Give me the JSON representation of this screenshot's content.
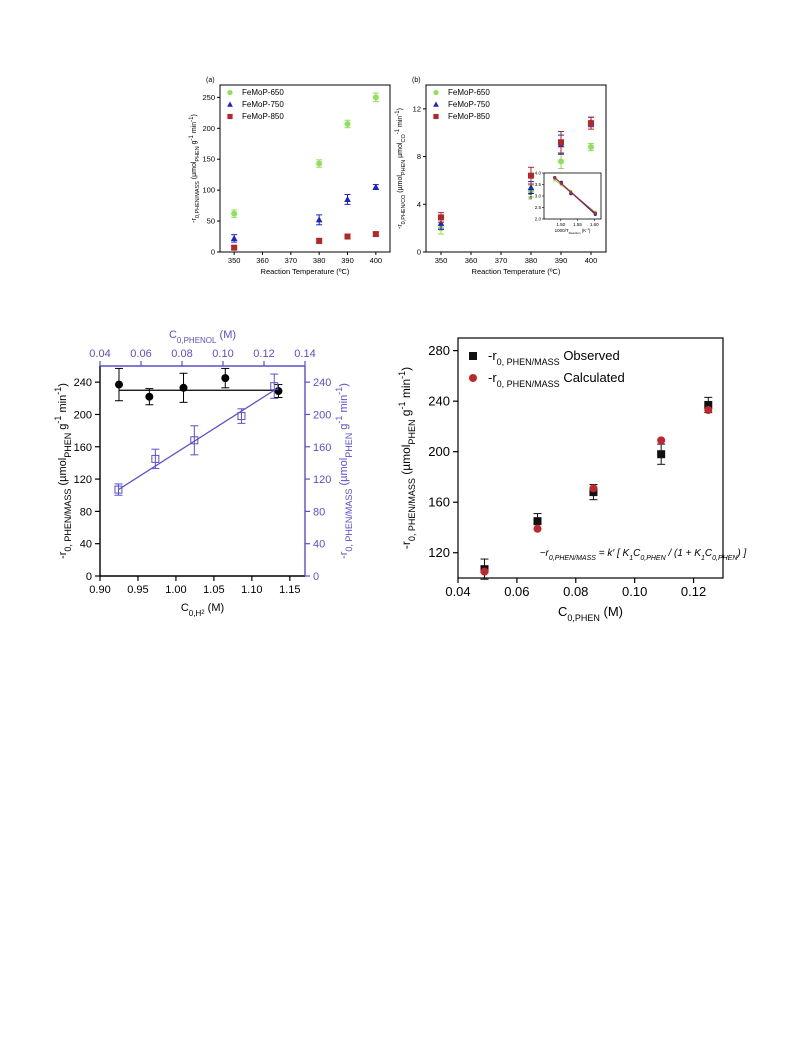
{
  "chart_data": [
    {
      "id": "a",
      "type": "scatter",
      "panel_label": "(a)",
      "title": "",
      "xlabel": "Reaction Temperature (ºC)",
      "ylabel_html": "-r<tspan baseline-shift='sub' font-size='5.5'>0,PHEN/MASS</tspan> (µmol<tspan baseline-shift='sub' font-size='5.5'>PHEN</tspan> g<tspan baseline-shift='super' font-size='6'>-1</tspan> min<tspan baseline-shift='super' font-size='6'>-1</tspan>)",
      "xlim": [
        345,
        405
      ],
      "ylim": [
        0,
        270
      ],
      "xticks": [
        350,
        360,
        370,
        380,
        390,
        400
      ],
      "yticks": [
        0,
        50,
        100,
        150,
        200,
        250
      ],
      "legend_position": "top-left",
      "grid": false,
      "series": [
        {
          "name": "FeMoP-650",
          "color": "#8fe05a",
          "marker": "circle",
          "x": [
            350,
            380,
            390,
            400
          ],
          "y": [
            62,
            143,
            207,
            250
          ],
          "err": [
            6,
            6,
            6,
            7
          ]
        },
        {
          "name": "FeMoP-750",
          "color": "#1c22c4",
          "marker": "triangle",
          "x": [
            350,
            380,
            390,
            400
          ],
          "y": [
            22,
            52,
            85,
            105
          ],
          "err": [
            6,
            8,
            8,
            4
          ]
        },
        {
          "name": "FeMoP-850",
          "color": "#b3262a",
          "marker": "square",
          "x": [
            350,
            380,
            390,
            400
          ],
          "y": [
            7,
            18,
            25,
            29
          ],
          "err": [
            3,
            4,
            4,
            3
          ]
        }
      ]
    },
    {
      "id": "b",
      "type": "scatter",
      "panel_label": "(b)",
      "title": "",
      "xlabel": "Reaction Temperature (ºC)",
      "ylabel_html": "-r<tspan baseline-shift='sub' font-size='5.5'>0,PHEN/CO</tspan> (µmol<tspan baseline-shift='sub' font-size='5.5'>PHEN</tspan> µmol<tspan baseline-shift='sub' font-size='5.5'>CO</tspan><tspan baseline-shift='super' font-size='6'>-1</tspan> min<tspan baseline-shift='super' font-size='6'>-1</tspan>)",
      "xlim": [
        345,
        405
      ],
      "ylim": [
        0,
        14
      ],
      "xticks": [
        350,
        360,
        370,
        380,
        390,
        400
      ],
      "yticks": [
        0,
        4,
        8,
        12
      ],
      "legend_position": "top-left",
      "grid": false,
      "series": [
        {
          "name": "FeMoP-650",
          "color": "#8fe05a",
          "marker": "circle",
          "x": [
            350,
            380,
            390,
            400
          ],
          "y": [
            2.0,
            5.1,
            7.6,
            8.8
          ],
          "err": [
            0.5,
            0.5,
            0.6,
            0.3
          ]
        },
        {
          "name": "FeMoP-750",
          "color": "#1c22c4",
          "marker": "triangle",
          "x": [
            350,
            380,
            390,
            400
          ],
          "y": [
            2.4,
            5.4,
            9.0,
            10.9
          ],
          "err": [
            0.5,
            0.5,
            0.8,
            0.4
          ]
        },
        {
          "name": "FeMoP-850",
          "color": "#b3262a",
          "marker": "square",
          "x": [
            350,
            380,
            390,
            400
          ],
          "y": [
            2.9,
            6.4,
            9.2,
            10.8
          ],
          "err": [
            0.4,
            0.7,
            0.9,
            0.5
          ]
        }
      ],
      "inset": {
        "xlabel_html": "1000/T<tspan baseline-shift='sub' font-size='3'>Reaction</tspan> (K<tspan baseline-shift='super' font-size='3'>-1</tspan>)",
        "ylabel": "ln k",
        "xlim": [
          1.45,
          1.62
        ],
        "ylim": [
          2.0,
          4.0
        ],
        "xticks": [
          1.5,
          1.55,
          1.6
        ],
        "xtick_labels": [
          "1.50",
          "1.55",
          "1.60"
        ],
        "yticks": [
          2.0,
          2.5,
          3.0,
          3.5,
          4.0
        ],
        "ytick_labels": [
          "2.0",
          "2.5",
          "3.0",
          "3.5",
          "4.0"
        ],
        "series": [
          {
            "color": "#8fe05a",
            "x": [
              1.482,
              1.502,
              1.53,
              1.603
            ],
            "y": [
              3.7,
              3.5,
              3.2,
              2.3
            ]
          },
          {
            "color": "#1c22c4",
            "x": [
              1.482,
              1.502,
              1.53,
              1.603
            ],
            "y": [
              3.8,
              3.6,
              3.1,
              2.2
            ]
          },
          {
            "color": "#b3262a",
            "x": [
              1.482,
              1.502,
              1.53,
              1.603
            ],
            "y": [
              3.8,
              3.55,
              3.15,
              2.25
            ]
          }
        ]
      }
    },
    {
      "id": "c",
      "type": "scatter",
      "title": "",
      "xlabel_html": "C<tspan baseline-shift='sub' font-size='8'>0,H</tspan><tspan baseline-shift='sub' font-size='6'>2</tspan> (M)",
      "ylabel_html": "-r<tspan baseline-shift='sub' font-size='9'>0, PHEN/MASS</tspan> (µmol<tspan baseline-shift='sub' font-size='9'>PHEN</tspan> g<tspan baseline-shift='super' font-size='9'>-1</tspan> min<tspan baseline-shift='super' font-size='9'>-1</tspan>)",
      "x2label_html": "C<tspan baseline-shift='sub' font-size='8'>0,PHENOL</tspan> (M)",
      "y2label_html": "-r<tspan baseline-shift='sub' font-size='9'>0, PHEN/MASS</tspan> (µmol<tspan baseline-shift='sub' font-size='9'>PHEN</tspan> g<tspan baseline-shift='super' font-size='9'>-1</tspan> min<tspan baseline-shift='super' font-size='9'>-1</tspan>)",
      "xlim": [
        0.9,
        1.17
      ],
      "xticks": [
        0.9,
        0.95,
        1.0,
        1.05,
        1.1,
        1.15
      ],
      "xtick_labels": [
        "0.90",
        "0.95",
        "1.00",
        "1.05",
        "1.10",
        "1.15"
      ],
      "ylim": [
        0,
        260
      ],
      "yticks": [
        0,
        40,
        80,
        120,
        160,
        200,
        240
      ],
      "x2lim": [
        0.04,
        0.14
      ],
      "x2ticks": [
        0.04,
        0.06,
        0.08,
        0.1,
        0.12,
        0.14
      ],
      "x2tick_labels": [
        "0.04",
        "0.06",
        "0.08",
        "0.10",
        "0.12",
        "0.14"
      ],
      "y2lim": [
        0,
        260
      ],
      "y2ticks": [
        0,
        40,
        80,
        120,
        160,
        200,
        240
      ],
      "axis2_color": "#5a4ed1",
      "series": [
        {
          "axis": "primary",
          "marker": "filled-circle",
          "color": "#000000",
          "x": [
            0.925,
            0.965,
            1.01,
            1.065,
            1.135
          ],
          "y": [
            237,
            222,
            233,
            245,
            229
          ],
          "err": [
            20,
            10,
            18,
            12,
            8
          ],
          "fit": {
            "x": [
              0.925,
              1.14
            ],
            "y": [
              230,
              230
            ]
          }
        },
        {
          "axis": "secondary",
          "marker": "open-square",
          "color": "#5a4ed1",
          "x": [
            0.049,
            0.067,
            0.086,
            0.109,
            0.125
          ],
          "y": [
            107,
            145,
            168,
            198,
            235
          ],
          "err": [
            7,
            12,
            18,
            9,
            15
          ],
          "fit": {
            "x": [
              0.049,
              0.125
            ],
            "y": [
              107,
              230
            ]
          }
        }
      ]
    },
    {
      "id": "d",
      "type": "scatter",
      "title": "",
      "xlabel_html": "C<tspan baseline-shift='sub' font-size='9'>0,PHEN</tspan> (M)",
      "ylabel_html": "-r<tspan baseline-shift='sub' font-size='9'>0, PHEN/MASS</tspan> (µmol<tspan baseline-shift='sub' font-size='9'>PHEN</tspan> g<tspan baseline-shift='super' font-size='9'>-1</tspan> min<tspan baseline-shift='super' font-size='9'>-1</tspan>)",
      "xlim": [
        0.04,
        0.13
      ],
      "xticks": [
        0.04,
        0.06,
        0.08,
        0.1,
        0.12
      ],
      "xtick_labels": [
        "0.04",
        "0.06",
        "0.08",
        "0.10",
        "0.12"
      ],
      "ylim": [
        100,
        290
      ],
      "yticks": [
        120,
        160,
        200,
        240,
        280
      ],
      "legend_position": "top-left",
      "equation_html": "−r<tspan baseline-shift='sub' font-size='7'>0,PHEN/MASS</tspan> = k′ [ K<tspan baseline-shift='sub' font-size='7'>1</tspan>C<tspan baseline-shift='sub' font-size='7'>0,PHEN</tspan> / (1 + K<tspan baseline-shift='sub' font-size='7'>1</tspan>C<tspan baseline-shift='sub' font-size='7'>0,PHEN</tspan>) ]",
      "series": [
        {
          "name_html": "-r<tspan baseline-shift='sub' font-size='9'>0, PHEN/MASS</tspan> Observed",
          "marker": "square",
          "color": "#111111",
          "x": [
            0.049,
            0.067,
            0.086,
            0.109,
            0.125
          ],
          "y": [
            107,
            145,
            168,
            198,
            237
          ],
          "err": [
            8,
            6,
            6,
            8,
            6
          ]
        },
        {
          "name_html": "-r<tspan baseline-shift='sub' font-size='9'>0, PHEN/MASS</tspan> Calculated",
          "marker": "circle",
          "color": "#c0272d",
          "x": [
            0.049,
            0.067,
            0.086,
            0.109,
            0.125
          ],
          "y": [
            105,
            139,
            171,
            209,
            233
          ],
          "err": [
            0,
            0,
            0,
            0,
            0
          ]
        }
      ]
    }
  ]
}
